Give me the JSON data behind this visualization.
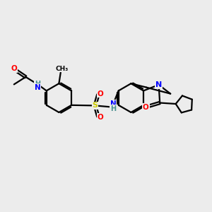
{
  "background_color": "#ececec",
  "atom_colors": {
    "C": "#000000",
    "N": "#0000ff",
    "O": "#ff0000",
    "S": "#cccc00",
    "H": "#4a9090"
  },
  "bond_color": "#000000",
  "bond_width": 1.6,
  "title": ""
}
